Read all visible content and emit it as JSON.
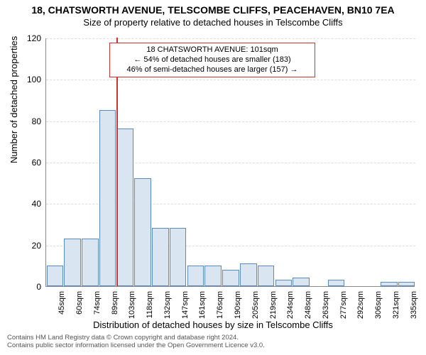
{
  "chart": {
    "type": "histogram",
    "title": "18, CHATSWORTH AVENUE, TELSCOMBE CLIFFS, PEACEHAVEN, BN10 7EA",
    "subtitle": "Size of property relative to detached houses in Telscombe Cliffs",
    "xlabel": "Distribution of detached houses by size in Telscombe Cliffs",
    "ylabel": "Number of detached properties",
    "background_color": "#ffffff",
    "grid_color": "#dddddd",
    "axis_color": "#888888",
    "bar_fill": "#d9e6f2",
    "bar_stroke": "#5a8cc0",
    "marker_color": "#cc3333",
    "title_fontsize": 14,
    "subtitle_fontsize": 13,
    "label_fontsize": 13,
    "tick_fontsize": 12,
    "xtick_fontsize": 11,
    "ylim": [
      0,
      120
    ],
    "ytick_step": 20,
    "yticks": [
      0,
      20,
      40,
      60,
      80,
      100,
      120
    ],
    "xticks": [
      "45sqm",
      "60sqm",
      "74sqm",
      "89sqm",
      "103sqm",
      "118sqm",
      "132sqm",
      "147sqm",
      "161sqm",
      "176sqm",
      "190sqm",
      "205sqm",
      "219sqm",
      "234sqm",
      "248sqm",
      "263sqm",
      "277sqm",
      "292sqm",
      "306sqm",
      "321sqm",
      "335sqm"
    ],
    "values": [
      10,
      23,
      23,
      85,
      76,
      52,
      28,
      28,
      10,
      10,
      8,
      11,
      10,
      3,
      4,
      0,
      3,
      0,
      0,
      2,
      2
    ],
    "marker_index": 4,
    "callout": {
      "line1": "18 CHATSWORTH AVENUE: 101sqm",
      "line2": "← 54% of detached houses are smaller (183)",
      "line3": "46% of semi-detached houses are larger (157) →"
    }
  },
  "footer": {
    "line1": "Contains HM Land Registry data © Crown copyright and database right 2024.",
    "line2": "Contains public sector information licensed under the Open Government Licence v3.0."
  }
}
